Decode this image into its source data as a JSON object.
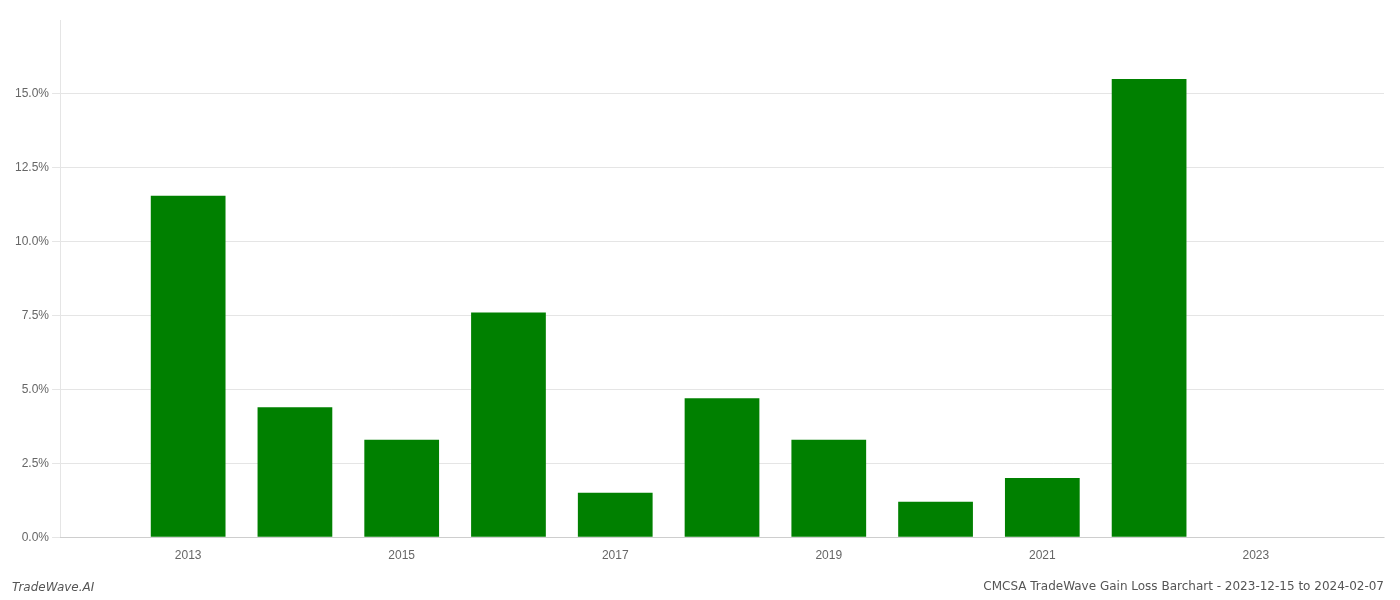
{
  "chart_data": {
    "type": "bar",
    "title": "CMCSA TradeWave Gain Loss Barchart - 2023-12-15 to 2024-02-07",
    "annotations": [
      "TradeWave.AI"
    ],
    "x": [
      2013,
      2014,
      2015,
      2016,
      2017,
      2018,
      2019,
      2020,
      2021,
      2022
    ],
    "values": [
      0.1155,
      0.044,
      0.033,
      0.076,
      0.015,
      0.047,
      0.033,
      0.012,
      0.02,
      0.155
    ],
    "color": "#008000",
    "xlim": [
      2011.8,
      2024.2
    ],
    "xticks": [
      2013,
      2015,
      2017,
      2019,
      2021,
      2023
    ],
    "ylim": [
      0,
      0.175
    ],
    "yticks": [
      {
        "value": 0.0,
        "label": "0.0%"
      },
      {
        "value": 0.025,
        "label": "2.5%"
      },
      {
        "value": 0.05,
        "label": "5.0%"
      },
      {
        "value": 0.075,
        "label": "7.5%"
      },
      {
        "value": 0.1,
        "label": "10.0%"
      },
      {
        "value": 0.125,
        "label": "12.5%"
      },
      {
        "value": 0.15,
        "label": "15.0%"
      }
    ],
    "grid": true
  }
}
